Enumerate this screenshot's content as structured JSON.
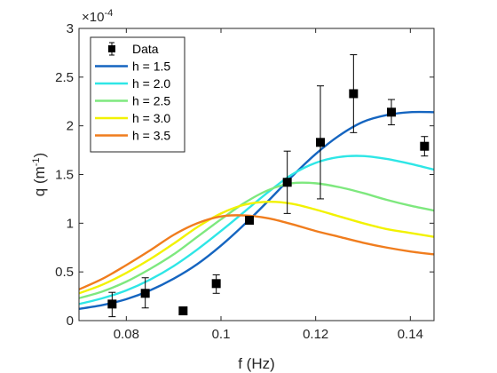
{
  "chart_data": {
    "type": "line",
    "title": "",
    "xlabel": "f (Hz)",
    "ylabel": "q (m",
    "ylabel_superscript": "-1",
    "ylabel_suffix": ")",
    "y_exponent_label": "×10",
    "y_exponent_power": "-4",
    "xlim": [
      0.07,
      0.145
    ],
    "ylim": [
      0,
      3
    ],
    "xticks": [
      0.08,
      0.1,
      0.12,
      0.14
    ],
    "xtick_labels": [
      "0.08",
      "0.1",
      "0.12",
      "0.14"
    ],
    "yticks": [
      0,
      0.5,
      1,
      1.5,
      2,
      2.5,
      3
    ],
    "ytick_labels": [
      "0",
      "0.5",
      "1",
      "1.5",
      "2",
      "2.5",
      "3"
    ],
    "grid": false,
    "legend_position": "top-left",
    "data_points": {
      "name": "Data",
      "color": "#000000",
      "x": [
        0.077,
        0.084,
        0.092,
        0.099,
        0.106,
        0.114,
        0.121,
        0.128,
        0.136,
        0.143
      ],
      "y": [
        0.17,
        0.28,
        0.1,
        0.38,
        1.03,
        1.42,
        1.83,
        2.33,
        2.14,
        1.79
      ],
      "err_low": [
        0.13,
        0.15,
        0.0,
        0.1,
        0.0,
        0.32,
        0.58,
        0.4,
        0.13,
        0.1
      ],
      "err_high": [
        0.12,
        0.16,
        0.0,
        0.09,
        0.0,
        0.32,
        0.58,
        0.4,
        0.13,
        0.1
      ]
    },
    "series": [
      {
        "name": "h = 1.5",
        "color": "#1565C0",
        "x": [
          0.07,
          0.075,
          0.08,
          0.085,
          0.09,
          0.095,
          0.1,
          0.105,
          0.11,
          0.115,
          0.12,
          0.125,
          0.13,
          0.135,
          0.14,
          0.145
        ],
        "y": [
          0.12,
          0.16,
          0.22,
          0.31,
          0.43,
          0.58,
          0.77,
          0.99,
          1.23,
          1.48,
          1.71,
          1.9,
          2.04,
          2.11,
          2.14,
          2.14
        ]
      },
      {
        "name": "h = 2.0",
        "color": "#2EE6E6",
        "x": [
          0.07,
          0.075,
          0.08,
          0.085,
          0.09,
          0.095,
          0.1,
          0.105,
          0.11,
          0.115,
          0.12,
          0.125,
          0.13,
          0.135,
          0.14,
          0.145
        ],
        "y": [
          0.17,
          0.23,
          0.31,
          0.42,
          0.56,
          0.73,
          0.92,
          1.12,
          1.32,
          1.5,
          1.62,
          1.68,
          1.69,
          1.66,
          1.61,
          1.55
        ]
      },
      {
        "name": "h = 2.5",
        "color": "#7EE87E",
        "x": [
          0.07,
          0.075,
          0.08,
          0.085,
          0.09,
          0.095,
          0.1,
          0.105,
          0.11,
          0.115,
          0.12,
          0.125,
          0.13,
          0.135,
          0.14,
          0.145
        ],
        "y": [
          0.23,
          0.3,
          0.4,
          0.53,
          0.68,
          0.86,
          1.04,
          1.21,
          1.34,
          1.41,
          1.41,
          1.37,
          1.31,
          1.24,
          1.18,
          1.13
        ]
      },
      {
        "name": "h = 3.0",
        "color": "#F2F200",
        "x": [
          0.07,
          0.075,
          0.08,
          0.085,
          0.09,
          0.095,
          0.1,
          0.105,
          0.11,
          0.115,
          0.12,
          0.125,
          0.13,
          0.135,
          0.14,
          0.145
        ],
        "y": [
          0.28,
          0.37,
          0.49,
          0.63,
          0.79,
          0.96,
          1.1,
          1.19,
          1.22,
          1.2,
          1.14,
          1.07,
          1.0,
          0.94,
          0.9,
          0.86
        ]
      },
      {
        "name": "h = 3.5",
        "color": "#F07D1E",
        "x": [
          0.07,
          0.075,
          0.08,
          0.085,
          0.09,
          0.095,
          0.1,
          0.105,
          0.11,
          0.115,
          0.12,
          0.125,
          0.13,
          0.135,
          0.14,
          0.145
        ],
        "y": [
          0.32,
          0.43,
          0.57,
          0.72,
          0.88,
          1.0,
          1.07,
          1.08,
          1.05,
          0.99,
          0.92,
          0.86,
          0.8,
          0.75,
          0.71,
          0.68
        ]
      }
    ]
  }
}
